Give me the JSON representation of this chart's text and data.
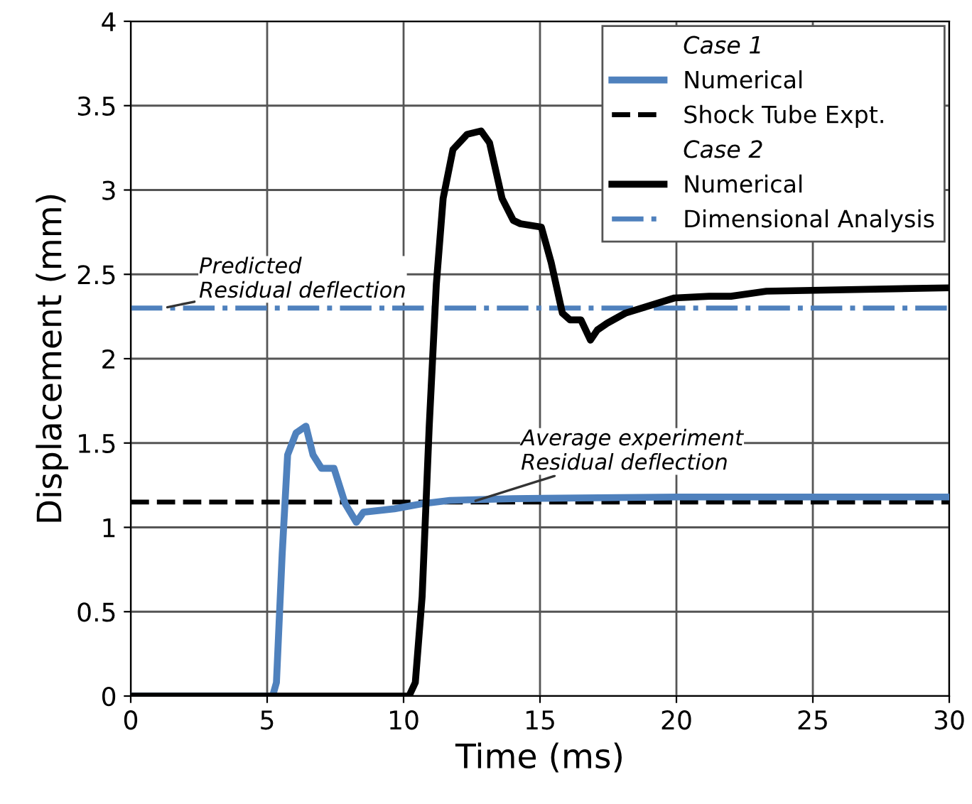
{
  "chart_data": {
    "type": "line",
    "xlabel": "Time (ms)",
    "ylabel": "Displacement (mm)",
    "xlim": [
      0,
      30
    ],
    "xticks": [
      0,
      5,
      10,
      15,
      20,
      25,
      30
    ],
    "ylim": [
      0,
      4
    ],
    "yticks": [
      0,
      0.5,
      1,
      1.5,
      2,
      2.5,
      3,
      3.5,
      4
    ],
    "grid": true,
    "legend": "top right",
    "line_style": "solid",
    "marker": "none",
    "series": [
      {
        "name": "Numerical",
        "color": "#4f81bd",
        "x": [
          0,
          5.2,
          5.34,
          5.55,
          5.75,
          6.06,
          6.42,
          6.68,
          6.99,
          7.45,
          7.86,
          8.27,
          8.53,
          9.66,
          10.68,
          11.7,
          14,
          20,
          30
        ],
        "values": [
          0,
          0,
          0.08,
          0.84,
          1.43,
          1.56,
          1.6,
          1.43,
          1.35,
          1.35,
          1.14,
          1.03,
          1.09,
          1.11,
          1.14,
          1.16,
          1.17,
          1.18,
          1.18
        ]
      },
      {
        "name": "Numerical",
        "color": "#000000",
        "x": [
          0,
          10.2,
          10.43,
          10.68,
          10.94,
          11.2,
          11.45,
          11.81,
          12.33,
          12.84,
          13.15,
          13.61,
          14.02,
          14.28,
          15.05,
          15.41,
          15.82,
          16.1,
          16.5,
          16.85,
          17.1,
          17.46,
          18.13,
          19.93,
          21.2,
          22.0,
          23.3,
          30
        ],
        "values": [
          0,
          0,
          0.08,
          0.59,
          1.6,
          2.44,
          2.95,
          3.24,
          3.33,
          3.35,
          3.28,
          2.95,
          2.82,
          2.8,
          2.78,
          2.57,
          2.27,
          2.23,
          2.23,
          2.11,
          2.17,
          2.21,
          2.27,
          2.36,
          2.37,
          2.37,
          2.4,
          2.42
        ]
      }
    ],
    "ref_lines": [
      {
        "axis": "y",
        "value": 1.15,
        "label": "Shock Tube Expt.",
        "color": "#000000",
        "line_style": "dashed"
      },
      {
        "axis": "y",
        "value": 2.3,
        "label": "Dimensional Analysis",
        "color": "#4f81bd",
        "line_style": "dashdot"
      }
    ],
    "annotations": [
      "Case 1",
      "Case 2",
      {
        "text": "Predicted\nResidual deflection",
        "x": 1.2,
        "y": 2.3
      },
      {
        "text": "Average experiment\nResidual deflection",
        "x": 12.5,
        "y": 1.15
      }
    ]
  }
}
